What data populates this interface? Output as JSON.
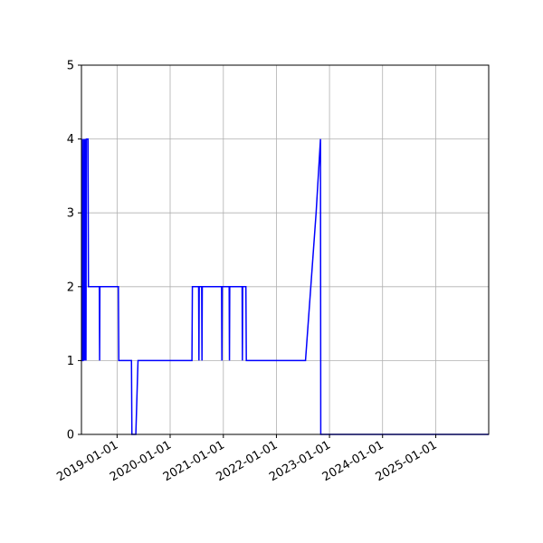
{
  "chart_data": {
    "type": "line",
    "title": "",
    "xlabel": "",
    "ylabel": "",
    "grid": true,
    "line_color": "#0000ff",
    "x_axis": "date",
    "xlim": [
      "2018-05-01",
      "2025-12-31"
    ],
    "ylim": [
      0,
      5
    ],
    "x_ticks": [
      {
        "value": "2019-01-01",
        "label": "2019-01-01"
      },
      {
        "value": "2020-01-01",
        "label": "2020-01-01"
      },
      {
        "value": "2021-01-01",
        "label": "2021-01-01"
      },
      {
        "value": "2022-01-01",
        "label": "2022-01-01"
      },
      {
        "value": "2023-01-01",
        "label": "2023-01-01"
      },
      {
        "value": "2024-01-01",
        "label": "2024-01-01"
      },
      {
        "value": "2025-01-01",
        "label": "2025-01-01"
      }
    ],
    "y_ticks": [
      {
        "value": 0,
        "label": "0"
      },
      {
        "value": 1,
        "label": "1"
      },
      {
        "value": 2,
        "label": "2"
      },
      {
        "value": 3,
        "label": "3"
      },
      {
        "value": 4,
        "label": "4"
      },
      {
        "value": 5,
        "label": "5"
      }
    ],
    "series": [
      {
        "points": [
          [
            "2018-05-05",
            4
          ],
          [
            "2018-05-08",
            1
          ],
          [
            "2018-05-12",
            1
          ],
          [
            "2018-05-15",
            4
          ],
          [
            "2018-05-18",
            1
          ],
          [
            "2018-05-22",
            4
          ],
          [
            "2018-05-25",
            1
          ],
          [
            "2018-05-28",
            4
          ],
          [
            "2018-06-01",
            1
          ],
          [
            "2018-06-04",
            4
          ],
          [
            "2018-06-15",
            4
          ],
          [
            "2018-06-18",
            2
          ],
          [
            "2018-09-01",
            2
          ],
          [
            "2018-09-03",
            1
          ],
          [
            "2018-09-05",
            2
          ],
          [
            "2019-01-10",
            2
          ],
          [
            "2019-01-13",
            1
          ],
          [
            "2019-04-10",
            1
          ],
          [
            "2019-04-13",
            0
          ],
          [
            "2019-05-10",
            0
          ],
          [
            "2019-05-25",
            1
          ],
          [
            "2020-05-30",
            1
          ],
          [
            "2020-06-02",
            2
          ],
          [
            "2020-07-15",
            2
          ],
          [
            "2020-07-17",
            1
          ],
          [
            "2020-07-19",
            2
          ],
          [
            "2020-08-05",
            2
          ],
          [
            "2020-08-07",
            1
          ],
          [
            "2020-08-09",
            2
          ],
          [
            "2020-12-20",
            2
          ],
          [
            "2020-12-22",
            1
          ],
          [
            "2020-12-24",
            2
          ],
          [
            "2021-02-10",
            2
          ],
          [
            "2021-02-12",
            1
          ],
          [
            "2021-02-14",
            2
          ],
          [
            "2021-05-10",
            2
          ],
          [
            "2021-05-12",
            1
          ],
          [
            "2021-05-14",
            2
          ],
          [
            "2021-06-05",
            2
          ],
          [
            "2021-06-08",
            1
          ],
          [
            "2022-07-20",
            1
          ],
          [
            "2022-10-01",
            3
          ],
          [
            "2022-10-31",
            4
          ],
          [
            "2022-11-02",
            0
          ],
          [
            "2025-12-31",
            0
          ]
        ]
      }
    ]
  }
}
